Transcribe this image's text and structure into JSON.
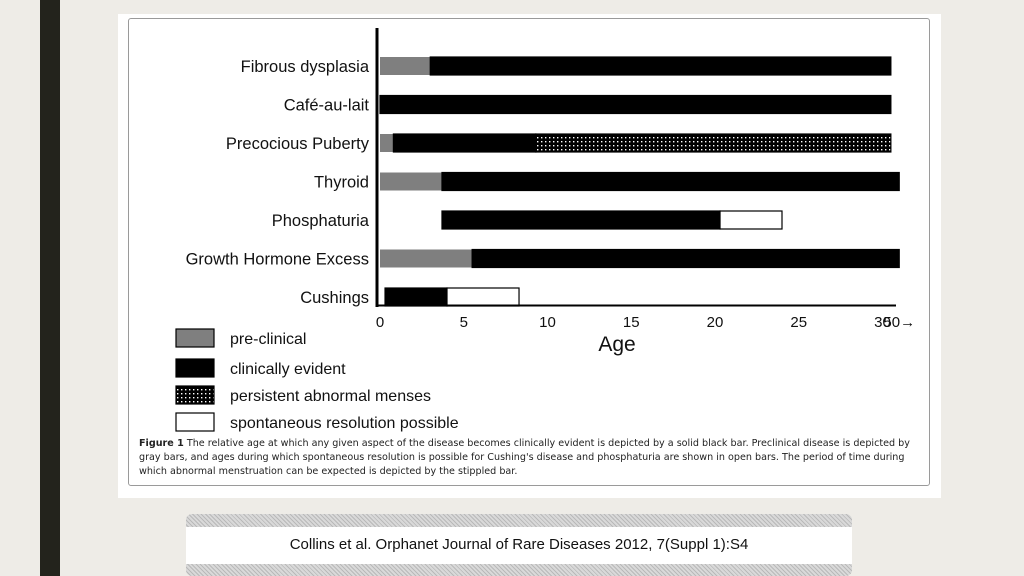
{
  "chart_data": {
    "type": "bar",
    "categories": [
      "Fibrous dysplasia",
      "Café-au-lait",
      "Precocious Puberty",
      "Thyroid",
      "Phosphaturia",
      "Growth Hormone Excess",
      "Cushings"
    ],
    "segments": [
      [
        {
          "kind": "pre-clinical",
          "start": 0,
          "end": 3
        },
        {
          "kind": "clinically evident",
          "start": 3,
          "end": 30.5
        }
      ],
      [
        {
          "kind": "clinically evident",
          "start": 0,
          "end": 30.5
        }
      ],
      [
        {
          "kind": "pre-clinical",
          "start": 0,
          "end": 0.8
        },
        {
          "kind": "clinically evident",
          "start": 0.8,
          "end": 9.3
        },
        {
          "kind": "persistent abnormal menses",
          "start": 9.3,
          "end": 30.5
        }
      ],
      [
        {
          "kind": "pre-clinical",
          "start": 0,
          "end": 3.7
        },
        {
          "kind": "clinically evident",
          "start": 3.7,
          "end": 31
        }
      ],
      [
        {
          "kind": "clinically evident",
          "start": 3.7,
          "end": 20.3
        },
        {
          "kind": "spontaneous resolution possible",
          "start": 20.3,
          "end": 24
        }
      ],
      [
        {
          "kind": "pre-clinical",
          "start": 0,
          "end": 5.5
        },
        {
          "kind": "clinically evident",
          "start": 5.5,
          "end": 31
        }
      ],
      [
        {
          "kind": "clinically evident",
          "start": 0.3,
          "end": 4
        },
        {
          "kind": "spontaneous resolution possible",
          "start": 4,
          "end": 8.3
        }
      ]
    ],
    "xticks": [
      "0",
      "5",
      "10",
      "15",
      "20",
      "25",
      "30",
      "50→"
    ],
    "xtick_values": [
      0,
      5,
      10,
      15,
      20,
      25,
      30,
      31
    ],
    "xlabel": "Age",
    "xlim": [
      0,
      31
    ],
    "legend": [
      {
        "kind": "pre-clinical",
        "label": "pre-clinical",
        "color": "#7f7f7f"
      },
      {
        "kind": "clinically evident",
        "label": "clinically evident",
        "color": "#000000"
      },
      {
        "kind": "persistent abnormal menses",
        "label": "persistent abnormal menses",
        "color": "stippled"
      },
      {
        "kind": "spontaneous resolution possible",
        "label": "spontaneous resolution possible",
        "color": "#ffffff"
      }
    ],
    "legend_position": "bottom-left",
    "grid": false
  },
  "caption": {
    "label": "Figure 1",
    "text": "The relative age at which any given aspect of the disease becomes clinically evident is depicted by a solid black bar. Preclinical disease is depicted by gray bars, and ages during which spontaneous resolution is possible for Cushing's disease and phosphaturia are shown in open bars. The period of time during which abnormal menstruation can be expected is depicted by the stippled bar."
  },
  "citation": {
    "authors": "Collins et al.",
    "journal": " Orphanet Journal of Rare Diseases ",
    "year": "2012",
    "volume": ", 7(Suppl 1):S4"
  }
}
